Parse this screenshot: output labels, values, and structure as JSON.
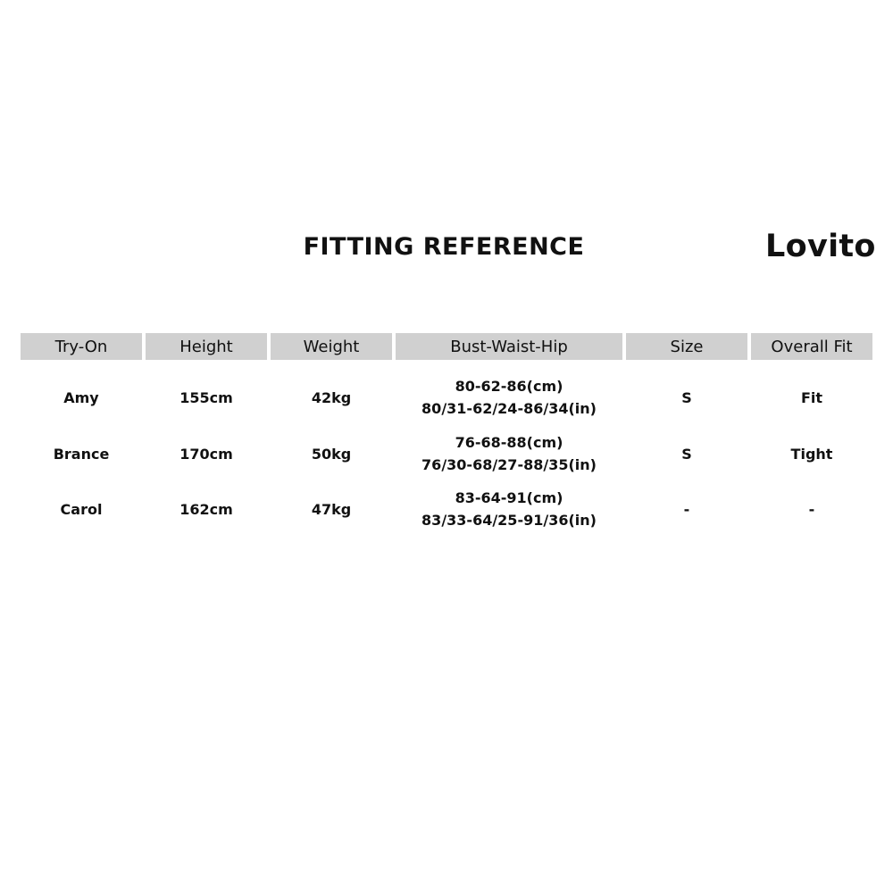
{
  "title": "FITTING REFERENCE",
  "brand": "Lovito",
  "columns": [
    "Try-On",
    "Height",
    "Weight",
    "Bust-Waist-Hip",
    "Size",
    "Overall Fit"
  ],
  "rows": [
    {
      "name": "Amy",
      "height": "155cm",
      "weight": "42kg",
      "bwh_cm": "80-62-86(cm)",
      "bwh_in": "80/31-62/24-86/34(in)",
      "size": "S",
      "fit": "Fit"
    },
    {
      "name": "Brance",
      "height": "170cm",
      "weight": "50kg",
      "bwh_cm": "76-68-88(cm)",
      "bwh_in": "76/30-68/27-88/35(in)",
      "size": "S",
      "fit": "Tight"
    },
    {
      "name": "Carol",
      "height": "162cm",
      "weight": "47kg",
      "bwh_cm": "83-64-91(cm)",
      "bwh_in": "83/33-64/25-91/36(in)",
      "size": "-",
      "fit": "-"
    }
  ],
  "colors": {
    "header_bg": "#d0d0d0",
    "text": "#111111"
  }
}
